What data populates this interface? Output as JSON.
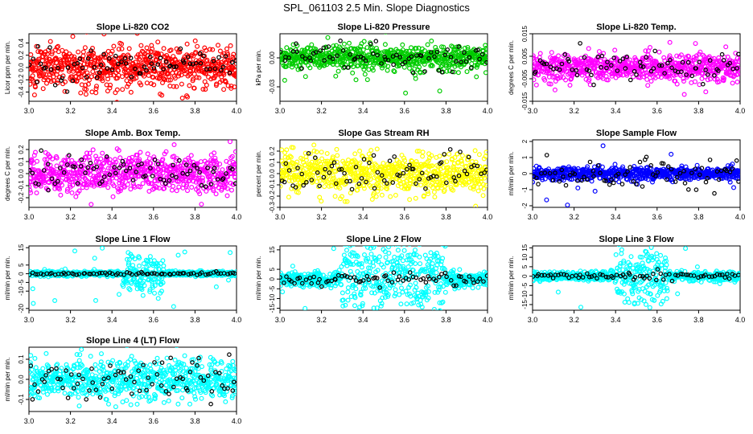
{
  "page": {
    "title": "SPL_061103  2.5 Min. Slope Diagnostics"
  },
  "chart_data": [
    {
      "type": "scatter",
      "title": "Slope Li-820 CO2",
      "ylabel": "Licor ppm per min.",
      "xlim": [
        3.0,
        4.0
      ],
      "ylim": [
        -0.55,
        0.55
      ],
      "xticks": [
        "3.0",
        "3.2",
        "3.4",
        "3.6",
        "3.8",
        "4.0"
      ],
      "yticks": [
        "-0.4",
        "-0.2",
        "0.0",
        "0.2",
        "0.4"
      ],
      "grid": false,
      "series": [
        {
          "color": "#ff0000",
          "count": 700,
          "spread": 0.17,
          "tail": 0.55
        },
        {
          "color": "#000000",
          "count": 75,
          "spread": 0.15,
          "tail": 0.35
        }
      ]
    },
    {
      "type": "scatter",
      "title": "Slope Li-820 Pressure",
      "ylabel": "kPa per min.",
      "xlim": [
        3.0,
        4.0
      ],
      "ylim": [
        -0.045,
        0.025
      ],
      "xticks": [
        "3.0",
        "3.2",
        "3.4",
        "3.6",
        "3.8",
        "4.0"
      ],
      "yticks": [
        "-0.03",
        "0.00"
      ],
      "grid": false,
      "series": [
        {
          "color": "#00cc00",
          "count": 700,
          "spread": 0.006,
          "tail": 0.04
        },
        {
          "color": "#000000",
          "count": 75,
          "spread": 0.007,
          "tail": 0.02
        }
      ]
    },
    {
      "type": "scatter",
      "title": "Slope Li-820 Temp.",
      "ylabel": "degrees C per min.",
      "xlim": [
        3.0,
        4.0
      ],
      "ylim": [
        -0.015,
        0.015
      ],
      "xticks": [
        "3.0",
        "3.2",
        "3.4",
        "3.6",
        "3.8",
        "4.0"
      ],
      "yticks": [
        "-0.015",
        "-0.005",
        "0.005",
        "0.015"
      ],
      "grid": false,
      "series": [
        {
          "color": "#ff00ff",
          "count": 700,
          "spread": 0.003,
          "tail": 0.014
        },
        {
          "color": "#000000",
          "count": 75,
          "spread": 0.003,
          "tail": 0.01
        }
      ]
    },
    {
      "type": "scatter",
      "title": "Slope Amb. Box Temp.",
      "ylabel": "degrees C per min.",
      "xlim": [
        3.0,
        4.0
      ],
      "ylim": [
        -0.28,
        0.28
      ],
      "xticks": [
        "3.0",
        "3.2",
        "3.4",
        "3.6",
        "3.8",
        "4.0"
      ],
      "yticks": [
        "-0.2",
        "-0.1",
        "0.0",
        "0.1",
        "0.2"
      ],
      "grid": false,
      "series": [
        {
          "color": "#ff00ff",
          "count": 700,
          "spread": 0.08,
          "tail": 0.27
        },
        {
          "color": "#000000",
          "count": 75,
          "spread": 0.06,
          "tail": 0.2
        }
      ]
    },
    {
      "type": "scatter",
      "title": "Slope Gas Stream RH",
      "ylabel": "percent per min.",
      "xlim": [
        3.0,
        4.0
      ],
      "ylim": [
        -0.3,
        0.3
      ],
      "xticks": [
        "3.0",
        "3.2",
        "3.4",
        "3.6",
        "3.8",
        "4.0"
      ],
      "yticks": [
        "-0.3",
        "-0.2",
        "-0.1",
        "0.0",
        "0.1",
        "0.2"
      ],
      "grid": false,
      "series": [
        {
          "color": "#ffff00",
          "count": 700,
          "spread": 0.09,
          "tail": 0.3
        },
        {
          "color": "#000000",
          "count": 75,
          "spread": 0.08,
          "tail": 0.25
        }
      ]
    },
    {
      "type": "scatter",
      "title": "Slope Sample Flow",
      "ylabel": "ml/min per min.",
      "xlim": [
        3.0,
        4.0
      ],
      "ylim": [
        -2.1,
        2.1
      ],
      "xticks": [
        "3.0",
        "3.2",
        "3.4",
        "3.6",
        "3.8",
        "4.0"
      ],
      "yticks": [
        "-2",
        "-1",
        "0",
        "1",
        "2"
      ],
      "grid": false,
      "series": [
        {
          "color": "#0000ff",
          "count": 700,
          "spread": 0.2,
          "tail": 2.0
        },
        {
          "color": "#000000",
          "count": 75,
          "spread": 0.5,
          "tail": 1.3
        }
      ]
    },
    {
      "type": "scatter",
      "title": "Slope Line 1 Flow",
      "ylabel": "ml/min per min.",
      "xlim": [
        3.0,
        4.0
      ],
      "ylim": [
        -21,
        16
      ],
      "xticks": [
        "3.0",
        "3.2",
        "3.4",
        "3.6",
        "3.8",
        "4.0"
      ],
      "yticks": [
        "-20",
        "-10",
        "-5",
        "0",
        "5",
        "15"
      ],
      "grid": false,
      "series": [
        {
          "color": "#00ffff",
          "count": 700,
          "spread": 0.7,
          "tail": 20,
          "burst": [
            3.45,
            3.65,
            8
          ]
        },
        {
          "color": "#000000",
          "count": 75,
          "spread": 0.4,
          "tail": 1.5
        }
      ]
    },
    {
      "type": "scatter",
      "title": "Slope Line 2 Flow",
      "ylabel": "ml/min per min.",
      "xlim": [
        3.0,
        4.0
      ],
      "ylim": [
        -16,
        17
      ],
      "xticks": [
        "3.0",
        "3.2",
        "3.4",
        "3.6",
        "3.8",
        "4.0"
      ],
      "yticks": [
        "-15",
        "-10",
        "-5",
        "0",
        "5",
        "15"
      ],
      "grid": false,
      "series": [
        {
          "color": "#00ffff",
          "count": 700,
          "spread": 2.0,
          "tail": 16,
          "burst": [
            3.3,
            3.8,
            5
          ]
        },
        {
          "color": "#000000",
          "count": 75,
          "spread": 1.5,
          "tail": 6
        }
      ]
    },
    {
      "type": "scatter",
      "title": "Slope Line 3 Flow",
      "ylabel": "ml/min per min.",
      "xlim": [
        3.0,
        4.0
      ],
      "ylim": [
        -18,
        16
      ],
      "xticks": [
        "3.0",
        "3.2",
        "3.4",
        "3.6",
        "3.8",
        "4.0"
      ],
      "yticks": [
        "-15",
        "-10",
        "-5",
        "0",
        "5",
        "10",
        "15"
      ],
      "grid": false,
      "series": [
        {
          "color": "#00ffff",
          "count": 700,
          "spread": 1.2,
          "tail": 17,
          "burst": [
            3.4,
            3.65,
            6
          ]
        },
        {
          "color": "#000000",
          "count": 75,
          "spread": 1.0,
          "tail": 6
        }
      ]
    },
    {
      "type": "scatter",
      "title": "Slope Line 4 (LT) Flow",
      "ylabel": "ml/min per min.",
      "xlim": [
        3.0,
        4.0
      ],
      "ylim": [
        -0.16,
        0.16
      ],
      "xticks": [
        "3.0",
        "3.2",
        "3.4",
        "3.6",
        "3.8",
        "4.0"
      ],
      "yticks": [
        "-0.1",
        "0.0",
        "0.1"
      ],
      "grid": false,
      "series": [
        {
          "color": "#00ffff",
          "count": 700,
          "spread": 0.05,
          "tail": 0.16
        },
        {
          "color": "#000000",
          "count": 75,
          "spread": 0.05,
          "tail": 0.13
        }
      ]
    }
  ]
}
